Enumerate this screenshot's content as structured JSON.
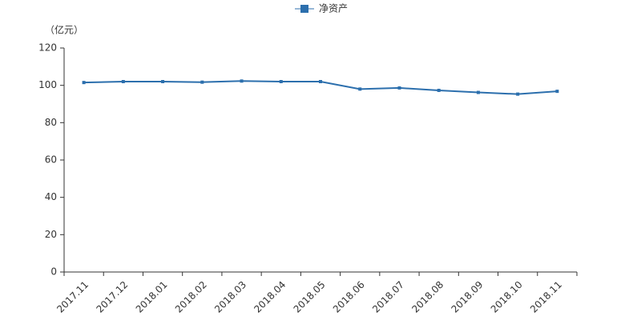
{
  "chart_data": {
    "type": "line",
    "ylabel": "（亿元）",
    "categories": [
      "2017.11",
      "2017.12",
      "2018.01",
      "2018.02",
      "2018.03",
      "2018.04",
      "2018.05",
      "2018.06",
      "2018.07",
      "2018.08",
      "2018.09",
      "2018.10",
      "2018.11"
    ],
    "series": [
      {
        "name": "净资产",
        "color": "#2c6fad",
        "values": [
          101.5,
          102,
          102,
          101.7,
          102.3,
          102,
          102,
          98,
          98.6,
          97.3,
          96.2,
          95.3,
          96.8
        ]
      }
    ],
    "ylim": [
      0,
      120
    ],
    "yticks": [
      0,
      20,
      40,
      60,
      80,
      100,
      120
    ],
    "grid": false
  }
}
